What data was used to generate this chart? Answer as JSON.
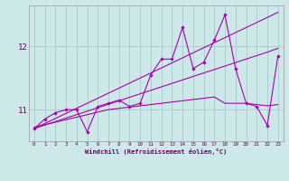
{
  "x": [
    0,
    1,
    2,
    3,
    4,
    5,
    6,
    7,
    8,
    9,
    10,
    11,
    12,
    13,
    14,
    15,
    16,
    17,
    18,
    19,
    20,
    21,
    22,
    23
  ],
  "y_main": [
    10.7,
    10.85,
    10.95,
    11.0,
    11.0,
    10.65,
    11.05,
    11.1,
    11.15,
    11.05,
    11.1,
    11.55,
    11.8,
    11.8,
    12.3,
    11.65,
    11.75,
    12.1,
    12.5,
    11.65,
    11.1,
    11.05,
    10.75,
    11.85
  ],
  "y_trend1": [
    10.7,
    10.78,
    10.86,
    10.94,
    11.02,
    11.1,
    11.18,
    11.26,
    11.34,
    11.42,
    11.5,
    11.58,
    11.66,
    11.74,
    11.82,
    11.9,
    11.98,
    12.06,
    12.14,
    12.22,
    12.3,
    12.38,
    12.46,
    12.54
  ],
  "y_trend2": [
    10.7,
    10.755,
    10.81,
    10.865,
    10.92,
    10.975,
    11.03,
    11.085,
    11.14,
    11.195,
    11.25,
    11.305,
    11.36,
    11.415,
    11.47,
    11.525,
    11.58,
    11.635,
    11.69,
    11.745,
    11.8,
    11.855,
    11.91,
    11.97
  ],
  "y_flat": [
    10.72,
    10.76,
    10.8,
    10.84,
    10.88,
    10.92,
    10.96,
    11.0,
    11.02,
    11.04,
    11.06,
    11.08,
    11.1,
    11.12,
    11.14,
    11.16,
    11.18,
    11.2,
    11.1,
    11.1,
    11.1,
    11.08,
    11.06,
    11.08
  ],
  "line_color": "#aa00aa",
  "bg_color": "#cce8e8",
  "grid_color": "#a8c8cc",
  "xlabel": "Windchill (Refroidissement éolien,°C)",
  "xlim": [
    -0.5,
    23.5
  ],
  "ylim": [
    10.5,
    12.65
  ],
  "yticks": [
    11,
    12
  ],
  "xticks": [
    0,
    1,
    2,
    3,
    4,
    5,
    6,
    7,
    8,
    9,
    10,
    11,
    12,
    13,
    14,
    15,
    16,
    17,
    18,
    19,
    20,
    21,
    22,
    23
  ]
}
